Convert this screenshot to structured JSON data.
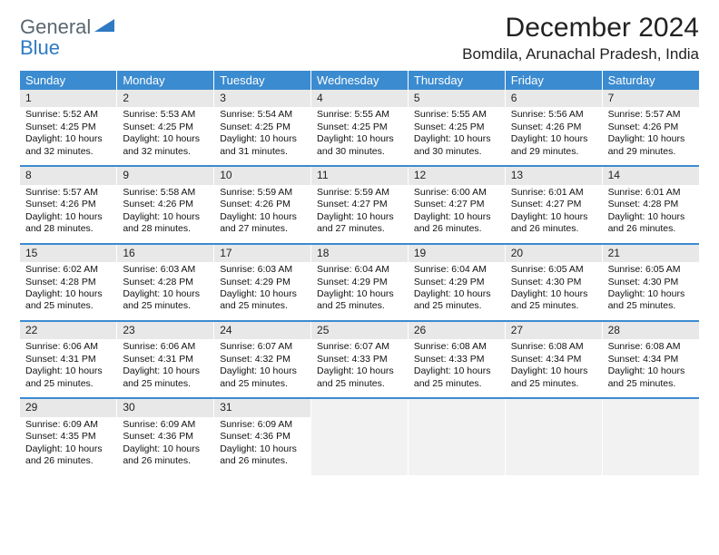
{
  "logo": {
    "text1": "General",
    "text2": "Blue"
  },
  "title": "December 2024",
  "location": "Bomdila, Arunachal Pradesh, India",
  "colors": {
    "header_bg": "#3b8bd0",
    "header_text": "#ffffff",
    "daynum_bg": "#e8e8e8",
    "row_border": "#3b8bd0",
    "blank_bg": "#f2f2f2",
    "logo_gray": "#5b6770",
    "logo_blue": "#2f7ac3"
  },
  "day_headers": [
    "Sunday",
    "Monday",
    "Tuesday",
    "Wednesday",
    "Thursday",
    "Friday",
    "Saturday"
  ],
  "weeks": [
    [
      {
        "n": "1",
        "sr": "5:52 AM",
        "ss": "4:25 PM",
        "dl": "10 hours and 32 minutes."
      },
      {
        "n": "2",
        "sr": "5:53 AM",
        "ss": "4:25 PM",
        "dl": "10 hours and 32 minutes."
      },
      {
        "n": "3",
        "sr": "5:54 AM",
        "ss": "4:25 PM",
        "dl": "10 hours and 31 minutes."
      },
      {
        "n": "4",
        "sr": "5:55 AM",
        "ss": "4:25 PM",
        "dl": "10 hours and 30 minutes."
      },
      {
        "n": "5",
        "sr": "5:55 AM",
        "ss": "4:25 PM",
        "dl": "10 hours and 30 minutes."
      },
      {
        "n": "6",
        "sr": "5:56 AM",
        "ss": "4:26 PM",
        "dl": "10 hours and 29 minutes."
      },
      {
        "n": "7",
        "sr": "5:57 AM",
        "ss": "4:26 PM",
        "dl": "10 hours and 29 minutes."
      }
    ],
    [
      {
        "n": "8",
        "sr": "5:57 AM",
        "ss": "4:26 PM",
        "dl": "10 hours and 28 minutes."
      },
      {
        "n": "9",
        "sr": "5:58 AM",
        "ss": "4:26 PM",
        "dl": "10 hours and 28 minutes."
      },
      {
        "n": "10",
        "sr": "5:59 AM",
        "ss": "4:26 PM",
        "dl": "10 hours and 27 minutes."
      },
      {
        "n": "11",
        "sr": "5:59 AM",
        "ss": "4:27 PM",
        "dl": "10 hours and 27 minutes."
      },
      {
        "n": "12",
        "sr": "6:00 AM",
        "ss": "4:27 PM",
        "dl": "10 hours and 26 minutes."
      },
      {
        "n": "13",
        "sr": "6:01 AM",
        "ss": "4:27 PM",
        "dl": "10 hours and 26 minutes."
      },
      {
        "n": "14",
        "sr": "6:01 AM",
        "ss": "4:28 PM",
        "dl": "10 hours and 26 minutes."
      }
    ],
    [
      {
        "n": "15",
        "sr": "6:02 AM",
        "ss": "4:28 PM",
        "dl": "10 hours and 25 minutes."
      },
      {
        "n": "16",
        "sr": "6:03 AM",
        "ss": "4:28 PM",
        "dl": "10 hours and 25 minutes."
      },
      {
        "n": "17",
        "sr": "6:03 AM",
        "ss": "4:29 PM",
        "dl": "10 hours and 25 minutes."
      },
      {
        "n": "18",
        "sr": "6:04 AM",
        "ss": "4:29 PM",
        "dl": "10 hours and 25 minutes."
      },
      {
        "n": "19",
        "sr": "6:04 AM",
        "ss": "4:29 PM",
        "dl": "10 hours and 25 minutes."
      },
      {
        "n": "20",
        "sr": "6:05 AM",
        "ss": "4:30 PM",
        "dl": "10 hours and 25 minutes."
      },
      {
        "n": "21",
        "sr": "6:05 AM",
        "ss": "4:30 PM",
        "dl": "10 hours and 25 minutes."
      }
    ],
    [
      {
        "n": "22",
        "sr": "6:06 AM",
        "ss": "4:31 PM",
        "dl": "10 hours and 25 minutes."
      },
      {
        "n": "23",
        "sr": "6:06 AM",
        "ss": "4:31 PM",
        "dl": "10 hours and 25 minutes."
      },
      {
        "n": "24",
        "sr": "6:07 AM",
        "ss": "4:32 PM",
        "dl": "10 hours and 25 minutes."
      },
      {
        "n": "25",
        "sr": "6:07 AM",
        "ss": "4:33 PM",
        "dl": "10 hours and 25 minutes."
      },
      {
        "n": "26",
        "sr": "6:08 AM",
        "ss": "4:33 PM",
        "dl": "10 hours and 25 minutes."
      },
      {
        "n": "27",
        "sr": "6:08 AM",
        "ss": "4:34 PM",
        "dl": "10 hours and 25 minutes."
      },
      {
        "n": "28",
        "sr": "6:08 AM",
        "ss": "4:34 PM",
        "dl": "10 hours and 25 minutes."
      }
    ],
    [
      {
        "n": "29",
        "sr": "6:09 AM",
        "ss": "4:35 PM",
        "dl": "10 hours and 26 minutes."
      },
      {
        "n": "30",
        "sr": "6:09 AM",
        "ss": "4:36 PM",
        "dl": "10 hours and 26 minutes."
      },
      {
        "n": "31",
        "sr": "6:09 AM",
        "ss": "4:36 PM",
        "dl": "10 hours and 26 minutes."
      },
      null,
      null,
      null,
      null
    ]
  ],
  "labels": {
    "sunrise": "Sunrise:",
    "sunset": "Sunset:",
    "daylight": "Daylight:"
  }
}
